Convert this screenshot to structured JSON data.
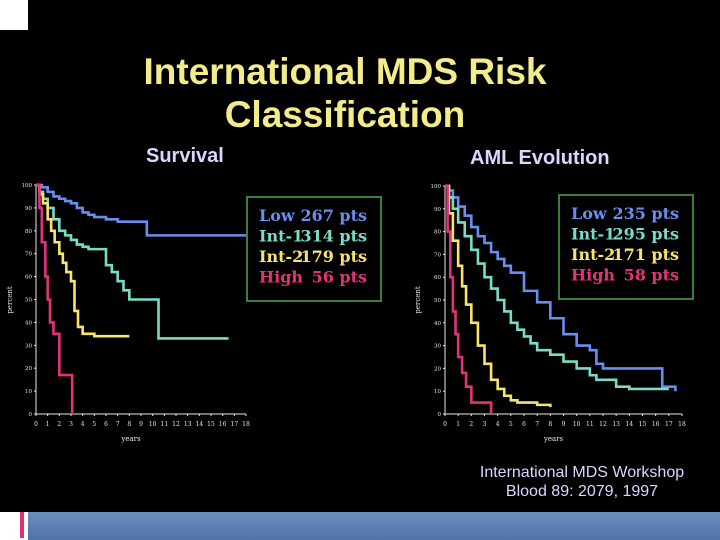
{
  "title_line1": "International MDS Risk",
  "title_line2": "Classification",
  "citation_line1": "International MDS Workshop",
  "citation_line2": "Blood 89: 2079, 1997",
  "colors": {
    "Low": "#6a8df0",
    "Int-1": "#79dcc6",
    "Int-2": "#f6e56a",
    "High": "#e4327a",
    "legend_border": "#4fa84f",
    "axis": "#e8e8e8"
  },
  "chart_data": [
    {
      "type": "line",
      "title": "Survival",
      "xlabel": "years",
      "ylabel": "percent",
      "xlim": [
        0,
        18
      ],
      "ylim": [
        0,
        100
      ],
      "x_ticks": [
        0,
        1,
        2,
        3,
        4,
        5,
        6,
        7,
        8,
        9,
        10,
        11,
        12,
        13,
        14,
        15,
        16,
        17,
        18
      ],
      "y_ticks": [
        0,
        10,
        20,
        30,
        40,
        50,
        60,
        70,
        80,
        90,
        100
      ],
      "legend": [
        {
          "name": "Low",
          "count": "267 pts"
        },
        {
          "name": "Int-1",
          "count": "314 pts"
        },
        {
          "name": "Int-2",
          "count": "179 pts"
        },
        {
          "name": "High",
          "count": "56 pts"
        }
      ],
      "series": [
        {
          "name": "Low",
          "x": [
            0,
            0.5,
            1,
            1.5,
            2,
            2.5,
            3,
            3.5,
            4,
            4.5,
            5,
            6,
            7,
            8,
            9,
            9.5,
            10,
            11,
            12,
            13,
            14,
            15,
            16,
            17,
            18
          ],
          "y": [
            100,
            99,
            97,
            95,
            94,
            93,
            92,
            90,
            88,
            87,
            86,
            85,
            84,
            84,
            84,
            78,
            78,
            78,
            78,
            78,
            78,
            78,
            78,
            78,
            78
          ]
        },
        {
          "name": "Int-1",
          "x": [
            0,
            0.3,
            0.6,
            1,
            1.5,
            2,
            2.5,
            3,
            3.5,
            4,
            4.5,
            5,
            6,
            6.5,
            7,
            7.5,
            8,
            9,
            10,
            10.5,
            11,
            12,
            13,
            14,
            15,
            16.5
          ],
          "y": [
            100,
            97,
            94,
            90,
            85,
            80,
            78,
            76,
            74,
            73,
            72,
            72,
            65,
            62,
            58,
            54,
            50,
            50,
            50,
            33,
            33,
            33,
            33,
            33,
            33,
            33
          ]
        },
        {
          "name": "Int-2",
          "x": [
            0,
            0.3,
            0.6,
            1,
            1.3,
            1.6,
            2,
            2.3,
            2.6,
            3,
            3.3,
            3.6,
            4,
            5,
            6,
            7,
            8
          ],
          "y": [
            100,
            96,
            92,
            85,
            80,
            75,
            70,
            66,
            62,
            58,
            45,
            38,
            35,
            34,
            34,
            34,
            34
          ]
        },
        {
          "name": "High",
          "x": [
            0,
            0.3,
            0.5,
            0.8,
            1,
            1.2,
            1.5,
            2,
            2.5,
            3,
            3.1
          ],
          "y": [
            100,
            90,
            75,
            60,
            50,
            40,
            35,
            17,
            17,
            17,
            0
          ]
        }
      ]
    },
    {
      "type": "line",
      "title": "AML Evolution",
      "xlabel": "years",
      "ylabel": "percent",
      "xlim": [
        0,
        18
      ],
      "ylim": [
        0,
        100
      ],
      "x_ticks": [
        0,
        1,
        2,
        3,
        4,
        5,
        6,
        7,
        8,
        9,
        10,
        11,
        12,
        13,
        14,
        15,
        16,
        17,
        18
      ],
      "y_ticks": [
        0,
        10,
        20,
        30,
        40,
        50,
        60,
        70,
        80,
        90,
        100
      ],
      "legend": [
        {
          "name": "Low",
          "count": "235 pts"
        },
        {
          "name": "Int-1",
          "count": "295 pts"
        },
        {
          "name": "Int-2",
          "count": "171 pts"
        },
        {
          "name": "High",
          "count": "58 pts"
        }
      ],
      "series": [
        {
          "name": "Low",
          "x": [
            0,
            0.3,
            0.6,
            1,
            1.5,
            2,
            2.5,
            3,
            3.5,
            4,
            4.5,
            5,
            6,
            7,
            8,
            9,
            10,
            11,
            11.5,
            12,
            13,
            14,
            15,
            16.5,
            17.5
          ],
          "y": [
            100,
            98,
            95,
            91,
            87,
            82,
            78,
            75,
            71,
            68,
            65,
            62,
            54,
            49,
            42,
            35,
            30,
            28,
            22,
            20,
            20,
            20,
            20,
            12,
            10
          ]
        },
        {
          "name": "Int-1",
          "x": [
            0,
            0.3,
            0.6,
            1,
            1.5,
            2,
            2.5,
            3,
            3.5,
            4,
            4.5,
            5,
            5.5,
            6,
            6.5,
            7,
            8,
            9,
            10,
            11,
            11.5,
            12,
            13,
            14,
            15,
            16,
            17
          ],
          "y": [
            100,
            95,
            90,
            84,
            78,
            72,
            66,
            60,
            55,
            50,
            45,
            40,
            37,
            34,
            31,
            28,
            26,
            23,
            20,
            17,
            15,
            15,
            12,
            11,
            11,
            11,
            11
          ]
        },
        {
          "name": "Int-2",
          "x": [
            0,
            0.3,
            0.6,
            1,
            1.3,
            1.6,
            2,
            2.5,
            3,
            3.5,
            4,
            4.5,
            5,
            5.5,
            6,
            7,
            8
          ],
          "y": [
            100,
            88,
            76,
            65,
            56,
            48,
            40,
            30,
            22,
            15,
            11,
            8,
            6,
            5,
            5,
            4,
            3
          ]
        },
        {
          "name": "High",
          "x": [
            0,
            0.2,
            0.4,
            0.6,
            0.8,
            1,
            1.3,
            1.6,
            2,
            3,
            3.5
          ],
          "y": [
            100,
            80,
            60,
            45,
            35,
            25,
            18,
            12,
            5,
            5,
            0
          ]
        }
      ]
    }
  ]
}
